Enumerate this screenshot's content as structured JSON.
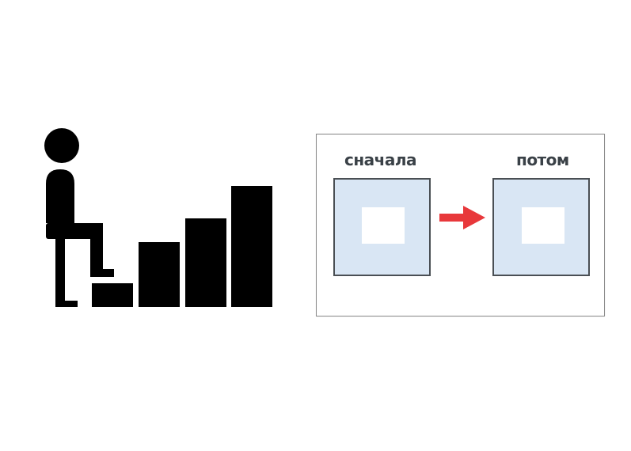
{
  "diagram": {
    "labels": {
      "first": "сначала",
      "then": "потом"
    },
    "colors": {
      "frame_fill": "#d9e6f4",
      "frame_border": "#4a4f54",
      "arrow": "#e8383b",
      "label_text": "#3a4147",
      "figure": "#000000"
    },
    "icons": [
      "person-climbing-stairs-icon",
      "right-arrow-icon"
    ]
  }
}
